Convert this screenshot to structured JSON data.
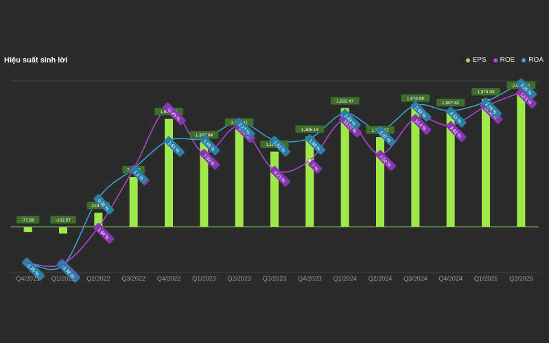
{
  "chart_data": {
    "type": "bar",
    "title": "Hiệu suất sinh lời",
    "categories": [
      "Q4/2021",
      "Q1/2022",
      "Q2/2022",
      "Q3/2022",
      "Q4/2022",
      "Q1/2023",
      "Q2/2023",
      "Q3/2023",
      "Q4/2023",
      "Q1/2024",
      "Q2/2024",
      "Q3/2024",
      "Q4/2024",
      "Q1/2025",
      "Q2/2025"
    ],
    "eps_labels": [
      "-77.89",
      "-102.07",
      "219.75",
      "770.65",
      "1,667.04",
      "1,307.04",
      "1,506.11",
      "1,161.63",
      "1,396.14",
      "1,832.47",
      "1,383.67",
      "1,874.88",
      "1,807.82",
      "1,974.09",
      "2,071.98"
    ],
    "roe_labels": [
      "-1.26 %",
      "-1.32 %",
      "1.64 %",
      "6.32 %",
      "11.26 %",
      "7.59 %",
      "9.74 %",
      "6.23 %",
      "7 %",
      "10.27 %",
      "7.50 %",
      "10.4 %",
      "9.82 %",
      "11.36 %",
      "12.5 %"
    ],
    "roa_labels": [
      "-1.26 %",
      "-1.32 %",
      "0.36 %",
      "1.1 %",
      "1.81 %",
      "1.85 %",
      "2.27 %",
      "1.82 %",
      "1.86 %",
      "2.49 %",
      "2.07 %",
      "2.69 %",
      "2.55 %",
      "2.78 %",
      "3.26 %"
    ],
    "series": [
      {
        "name": "EPS",
        "color": "#9ee84a",
        "values": [
          -77.89,
          -102.07,
          219.75,
          770.65,
          1667.04,
          1307.04,
          1506.11,
          1161.63,
          1396.14,
          1832.47,
          1383.67,
          1874.88,
          1807.82,
          1974.09,
          2071.98
        ]
      },
      {
        "name": "ROE",
        "color": "#b448e0",
        "values": [
          -1.26,
          -1.32,
          1.64,
          6.32,
          11.26,
          7.59,
          9.74,
          6.23,
          7.0,
          10.27,
          7.5,
          10.4,
          9.82,
          11.36,
          12.5
        ]
      },
      {
        "name": "ROA",
        "color": "#3aa8d8",
        "values": [
          -1.26,
          -1.32,
          0.36,
          1.1,
          1.81,
          1.85,
          2.27,
          1.82,
          1.86,
          2.49,
          2.07,
          2.69,
          2.55,
          2.78,
          3.26
        ]
      }
    ],
    "eps_range": [
      -700,
      2250
    ],
    "roe_range": [
      -2,
      13.4
    ],
    "roa_range": [
      -1.5,
      3.3
    ],
    "colors": {
      "eps_label_bg": "#3f6e2a",
      "roe_label_bg": "#8a36b4",
      "roa_label_bg": "#2a7fa6",
      "baseline": "#7fbf4a",
      "grid": "#444444"
    }
  }
}
